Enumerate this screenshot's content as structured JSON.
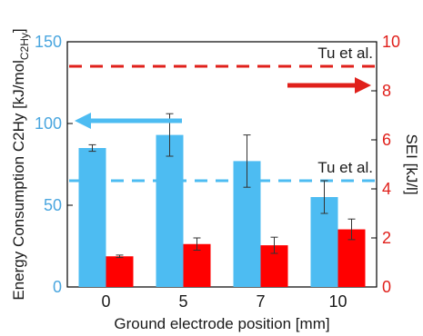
{
  "chart_data": {
    "type": "bar",
    "categories": [
      "0",
      "5",
      "7",
      "10"
    ],
    "xlabel": "Ground electrode position [mm]",
    "ylabel_left": {
      "main": "Energy Consumption C2Hy [kJ/mol",
      "sub": "C2Hy",
      "close": "]"
    },
    "ylabel_right": "SEI [kJ/l]",
    "ylim_left": [
      0,
      150
    ],
    "yticks_left": [
      "0",
      "50",
      "100",
      "150"
    ],
    "ylim_right": [
      0,
      10
    ],
    "yticks_right": [
      "0",
      "2",
      "4",
      "6",
      "8",
      "10"
    ],
    "series": [
      {
        "axis": "left",
        "color": "#4dbcf2",
        "values": [
          85,
          93,
          77,
          55
        ],
        "errors": [
          2,
          13,
          16,
          10
        ]
      },
      {
        "axis": "right",
        "color": "#ff0000",
        "values": [
          1.25,
          1.75,
          1.7,
          2.35
        ],
        "errors": [
          0.05,
          0.25,
          0.33,
          0.42
        ]
      }
    ],
    "reference_lines": [
      {
        "axis": "left",
        "value": 65,
        "label": "Tu et al.",
        "color": "#4dbcf2"
      },
      {
        "axis": "right",
        "value": 9.0,
        "label": "Tu et al.",
        "color": "#e0201b"
      }
    ],
    "arrows": [
      {
        "direction": "left",
        "color": "#4dbcf2"
      },
      {
        "direction": "right",
        "color": "#e0201b"
      }
    ],
    "grid": false,
    "legend": "none"
  }
}
